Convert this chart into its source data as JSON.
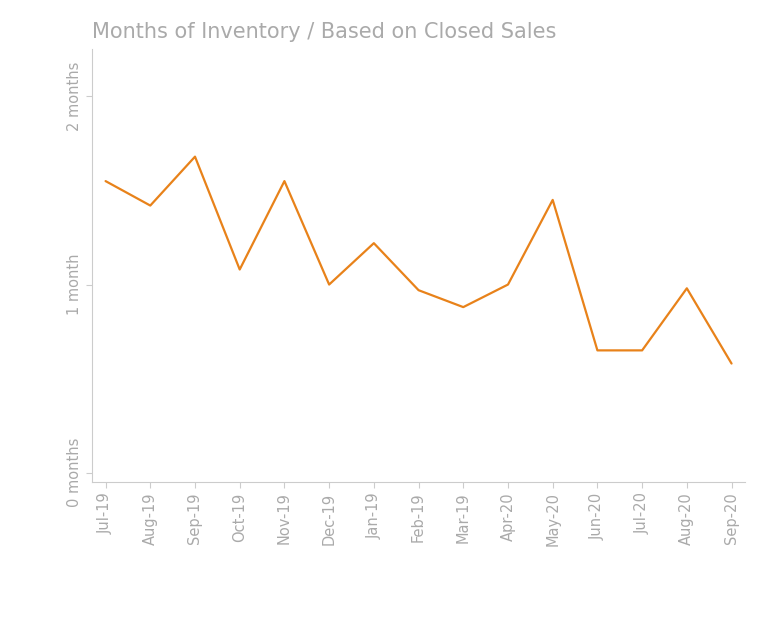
{
  "title": "Months of Inventory / Based on Closed Sales",
  "x_labels": [
    "Jul-19",
    "Aug-19",
    "Sep-19",
    "Oct-19",
    "Nov-19",
    "Dec-19",
    "Jan-19",
    "Feb-19",
    "Mar-19",
    "Apr-20",
    "May-20",
    "Jun-20",
    "Jul-20",
    "Aug-20",
    "Sep-20"
  ],
  "y_values": [
    1.55,
    1.42,
    1.68,
    1.08,
    1.55,
    1.0,
    1.22,
    0.97,
    0.88,
    1.0,
    1.45,
    0.65,
    0.65,
    0.98,
    0.58
  ],
  "line_color": "#E8821A",
  "background_color": "#ffffff",
  "yticks": [
    0,
    1,
    2
  ],
  "ytick_labels": [
    "0 months",
    "1 month",
    "2 months"
  ],
  "ylim": [
    -0.05,
    2.25
  ],
  "xlim": [
    -0.3,
    14.3
  ],
  "title_fontsize": 15,
  "tick_label_fontsize": 10.5,
  "line_width": 1.6,
  "spine_color": "#cccccc",
  "tick_color": "#aaaaaa",
  "label_color": "#aaaaaa",
  "title_color": "#aaaaaa"
}
